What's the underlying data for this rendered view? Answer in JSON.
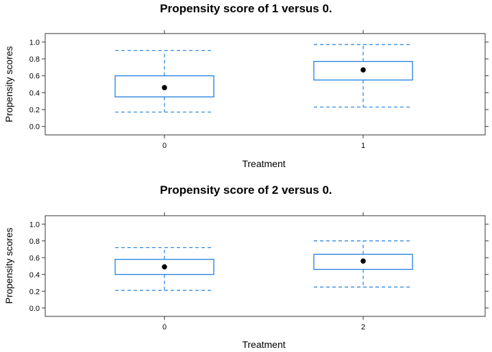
{
  "chart_data": [
    {
      "type": "boxplot",
      "title": "Propensity score of 1 versus 0.",
      "xlabel": "Treatment",
      "ylabel": "Propensity scores",
      "categories": [
        "0",
        "1"
      ],
      "ylim": [
        -0.1,
        1.1
      ],
      "yticks": [
        "0.0",
        "0.2",
        "0.4",
        "0.6",
        "0.8",
        "1.0"
      ],
      "box_color": "#1f7fdf",
      "boxes": [
        {
          "category": "0",
          "whisker_low": 0.17,
          "q1": 0.35,
          "median": 0.46,
          "q3": 0.6,
          "whisker_high": 0.9
        },
        {
          "category": "1",
          "whisker_low": 0.23,
          "q1": 0.55,
          "median": 0.67,
          "q3": 0.77,
          "whisker_high": 0.97
        }
      ]
    },
    {
      "type": "boxplot",
      "title": "Propensity score of 2 versus 0.",
      "xlabel": "Treatment",
      "ylabel": "Propensity scores",
      "categories": [
        "0",
        "2"
      ],
      "ylim": [
        -0.1,
        1.1
      ],
      "yticks": [
        "0.0",
        "0.2",
        "0.4",
        "0.6",
        "0.8",
        "1.0"
      ],
      "box_color": "#1f7fdf",
      "boxes": [
        {
          "category": "0",
          "whisker_low": 0.21,
          "q1": 0.4,
          "median": 0.49,
          "q3": 0.58,
          "whisker_high": 0.72
        },
        {
          "category": "2",
          "whisker_low": 0.25,
          "q1": 0.46,
          "median": 0.56,
          "q3": 0.64,
          "whisker_high": 0.8
        }
      ]
    }
  ]
}
